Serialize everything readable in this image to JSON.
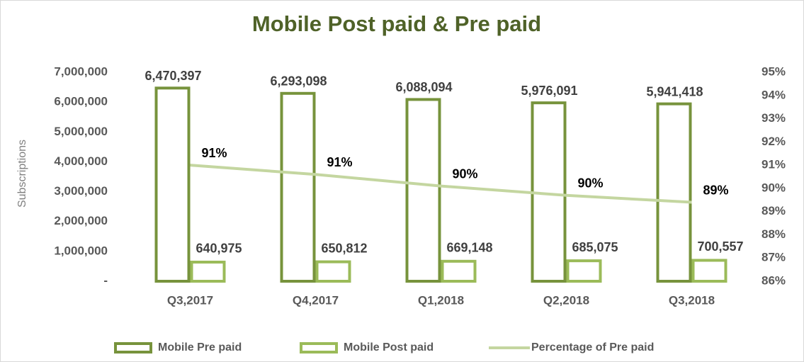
{
  "chart_data": {
    "type": "bar",
    "title": "Mobile Post paid & Pre paid",
    "y_label": "Subscriptions",
    "categories": [
      "Q3,2017",
      "Q4,2017",
      "Q1,2018",
      "Q2,2018",
      "Q3,2018"
    ],
    "series": [
      {
        "name": "Mobile Pre paid",
        "type": "bar",
        "color": "#77933c",
        "values": [
          6470397,
          6293098,
          6088094,
          5976091,
          5941418
        ],
        "value_labels": [
          "6,470,397",
          "6,293,098",
          "6,088,094",
          "5,976,091",
          "5,941,418"
        ]
      },
      {
        "name": "Mobile Post paid",
        "type": "bar",
        "color": "#9bbb59",
        "values": [
          640975,
          650812,
          669148,
          685075,
          700557
        ],
        "value_labels": [
          "640,975",
          "650,812",
          "669,148",
          "685,075",
          "700,557"
        ]
      },
      {
        "name": "Percentage of Pre paid",
        "type": "line",
        "axis": "y2",
        "color": "#c4d6a0",
        "values": [
          91.0,
          90.6,
          90.1,
          89.7,
          89.4
        ],
        "value_labels": [
          "91%",
          "91%",
          "90%",
          "90%",
          "89%"
        ]
      }
    ],
    "ylim": [
      0,
      7000000
    ],
    "yticks": [
      {
        "value": 0,
        "label": "-"
      },
      {
        "value": 1000000,
        "label": "1,000,000"
      },
      {
        "value": 2000000,
        "label": "2,000,000"
      },
      {
        "value": 3000000,
        "label": "3,000,000"
      },
      {
        "value": 4000000,
        "label": "4,000,000"
      },
      {
        "value": 5000000,
        "label": "5,000,000"
      },
      {
        "value": 6000000,
        "label": "6,000,000"
      },
      {
        "value": 7000000,
        "label": "7,000,000"
      }
    ],
    "y2lim": [
      86,
      95
    ],
    "y2ticks": [
      {
        "value": 86,
        "label": "86%"
      },
      {
        "value": 87,
        "label": "87%"
      },
      {
        "value": 88,
        "label": "88%"
      },
      {
        "value": 89,
        "label": "89%"
      },
      {
        "value": 90,
        "label": "90%"
      },
      {
        "value": 91,
        "label": "91%"
      },
      {
        "value": 92,
        "label": "92%"
      },
      {
        "value": 93,
        "label": "93%"
      },
      {
        "value": 94,
        "label": "94%"
      },
      {
        "value": 95,
        "label": "95%"
      }
    ],
    "legend": "bottom"
  }
}
